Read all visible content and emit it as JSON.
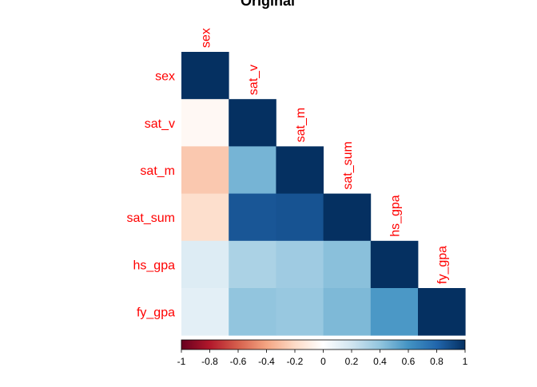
{
  "chart_data": {
    "type": "heatmap",
    "title": "Original",
    "variables": [
      "sex",
      "sat_v",
      "sat_m",
      "sat_sum",
      "hs_gpa",
      "fy_gpa"
    ],
    "layout": "lower-triangular correlation matrix",
    "correlations": [
      [
        1.0,
        null,
        null,
        null,
        null,
        null
      ],
      [
        -0.04,
        1.0,
        null,
        null,
        null,
        null
      ],
      [
        -0.27,
        0.47,
        1.0,
        null,
        null,
        null
      ],
      [
        -0.18,
        0.86,
        0.87,
        1.0,
        null,
        null
      ],
      [
        0.15,
        0.32,
        0.36,
        0.42,
        1.0,
        null
      ],
      [
        0.12,
        0.4,
        0.38,
        0.45,
        0.58,
        1.0
      ]
    ],
    "colorbar": {
      "range": [
        -1,
        1
      ],
      "ticks": [
        "-1",
        "-0.8",
        "-0.6",
        "-0.4",
        "-0.2",
        "0",
        "0.2",
        "0.4",
        "0.6",
        "0.8",
        "1"
      ],
      "low_color": "#67001f",
      "mid_color": "#ffffff",
      "high_color": "#053061"
    },
    "label_color": "#ff0000"
  }
}
